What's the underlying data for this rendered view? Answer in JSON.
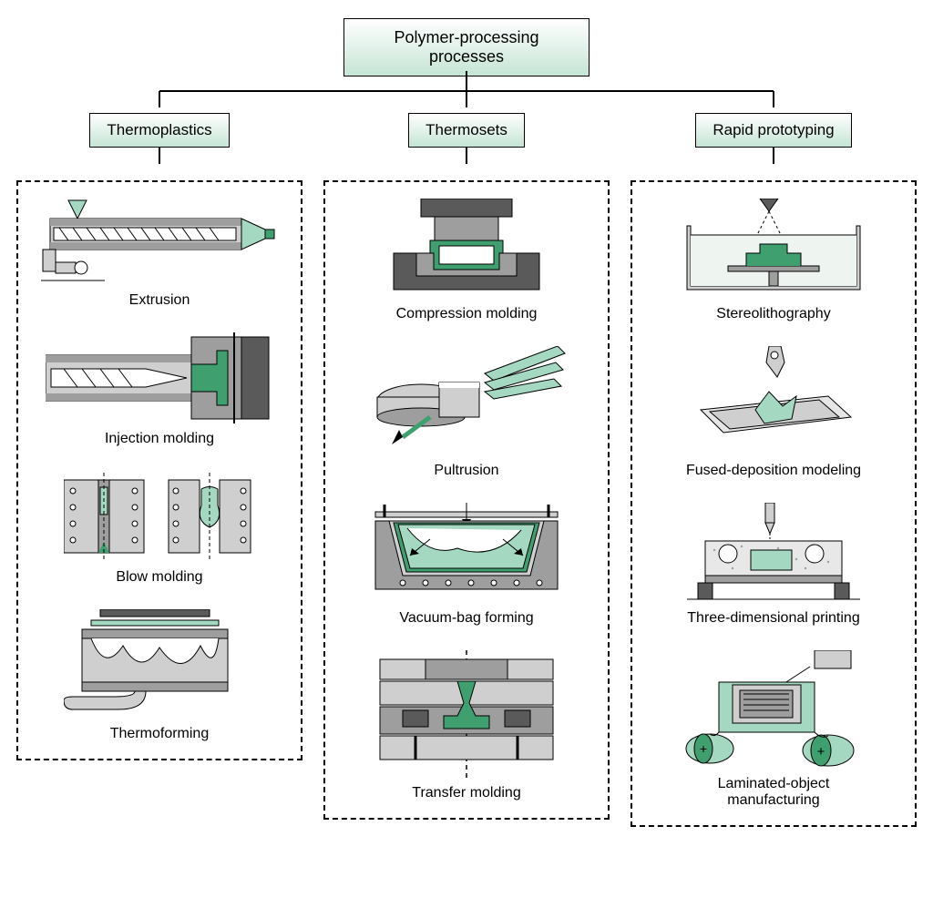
{
  "type": "tree",
  "colors": {
    "box_fill_top": "#ffffff",
    "box_fill_bottom": "#c5e5d5",
    "box_border": "#000000",
    "dashed_border": "#000000",
    "accent": "#3f9f6f",
    "accent_light": "#a5d8c0",
    "gray_mid": "#9e9e9e",
    "gray_dark": "#5a5a5a",
    "gray_light": "#cfcfcf",
    "black": "#000000",
    "white": "#ffffff"
  },
  "title": "Polymer-processing\nprocesses",
  "title_fontsize": 18,
  "category_fontsize": 17,
  "label_fontsize": 16,
  "categories": [
    {
      "name": "Thermoplastics",
      "items": [
        {
          "label": "Extrusion"
        },
        {
          "label": "Injection molding"
        },
        {
          "label": "Blow molding"
        },
        {
          "label": "Thermoforming"
        }
      ]
    },
    {
      "name": "Thermosets",
      "items": [
        {
          "label": "Compression molding"
        },
        {
          "label": "Pultrusion"
        },
        {
          "label": "Vacuum-bag forming"
        },
        {
          "label": "Transfer molding"
        }
      ]
    },
    {
      "name": "Rapid prototyping",
      "items": [
        {
          "label": "Stereolithography"
        },
        {
          "label": "Fused-deposition modeling"
        },
        {
          "label": "Three-dimensional printing"
        },
        {
          "label": "Laminated-object\nmanufacturing"
        }
      ]
    }
  ]
}
